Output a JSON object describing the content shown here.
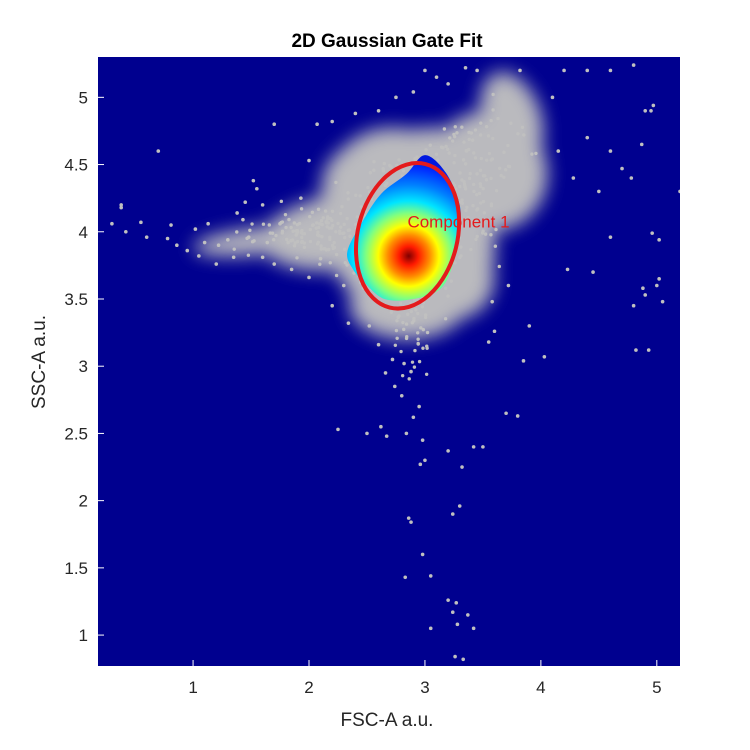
{
  "chart_data": {
    "type": "scatter",
    "title": "2D Gaussian Gate Fit",
    "xlabel": "FSC-A a.u.",
    "ylabel": "SSC-A a.u.",
    "xlim": [
      0.18,
      5.2
    ],
    "ylim": [
      0.77,
      5.3
    ],
    "xticks": [
      1,
      2,
      3,
      4,
      5
    ],
    "xtick_labels": [
      "1",
      "2",
      "3",
      "4",
      "5"
    ],
    "yticks": [
      1,
      1.5,
      2,
      2.5,
      3,
      3.5,
      4,
      4.5,
      5
    ],
    "ytick_labels": [
      "1",
      "1.5",
      "2",
      "2.5",
      "3",
      "3.5",
      "4",
      "4.5",
      "5"
    ],
    "grid": false,
    "colors": {
      "background": "#00008f",
      "outlier_points": "#c0c0c0",
      "gate": "#e41a1c",
      "annotation": "#e41a1c"
    },
    "colormap": "jet",
    "density_core": {
      "peak": [
        2.86,
        3.82
      ],
      "hull": [
        [
          2.33,
          3.85
        ],
        [
          2.45,
          4.06
        ],
        [
          2.62,
          4.28
        ],
        [
          2.84,
          4.43
        ],
        [
          3.0,
          4.57
        ],
        [
          3.18,
          4.44
        ],
        [
          3.3,
          4.2
        ],
        [
          3.3,
          3.99
        ],
        [
          3.25,
          3.78
        ],
        [
          3.14,
          3.58
        ],
        [
          2.9,
          3.5
        ],
        [
          2.65,
          3.5
        ],
        [
          2.48,
          3.62
        ],
        [
          2.38,
          3.72
        ]
      ]
    },
    "gate": {
      "center": [
        2.85,
        3.97
      ],
      "semi_axes": [
        0.43,
        0.55
      ],
      "rotation_deg": -14,
      "label": "Component 1",
      "label_anchor": [
        2.97,
        4.03
      ]
    },
    "outlier_points": [
      [
        0.3,
        4.06
      ],
      [
        0.38,
        4.2
      ],
      [
        0.38,
        4.18
      ],
      [
        0.42,
        4.0
      ],
      [
        0.55,
        4.07
      ],
      [
        0.6,
        3.96
      ],
      [
        0.7,
        4.6
      ],
      [
        0.78,
        3.95
      ],
      [
        0.81,
        4.05
      ],
      [
        0.86,
        3.9
      ],
      [
        0.95,
        3.86
      ],
      [
        1.02,
        4.02
      ],
      [
        1.1,
        3.92
      ],
      [
        1.13,
        4.06
      ],
      [
        1.22,
        3.9
      ],
      [
        1.3,
        3.94
      ],
      [
        1.35,
        3.81
      ],
      [
        1.43,
        4.09
      ],
      [
        1.48,
        3.96
      ],
      [
        1.6,
        4.2
      ],
      [
        1.64,
        3.92
      ],
      [
        1.7,
        4.8
      ],
      [
        1.75,
        4.06
      ],
      [
        1.82,
        3.92
      ],
      [
        1.9,
        4.0
      ],
      [
        1.93,
        4.25
      ],
      [
        2.0,
        4.53
      ],
      [
        2.07,
        4.8
      ],
      [
        2.0,
        3.66
      ],
      [
        2.1,
        3.8
      ],
      [
        2.3,
        3.6
      ],
      [
        2.52,
        3.3
      ],
      [
        2.6,
        3.16
      ],
      [
        2.72,
        3.05
      ],
      [
        2.82,
        3.02
      ],
      [
        2.66,
        2.95
      ],
      [
        2.74,
        2.85
      ],
      [
        2.88,
        2.96
      ],
      [
        2.8,
        2.78
      ],
      [
        2.95,
        2.7
      ],
      [
        2.9,
        2.62
      ],
      [
        2.25,
        2.53
      ],
      [
        2.62,
        2.55
      ],
      [
        2.5,
        2.5
      ],
      [
        2.67,
        2.48
      ],
      [
        2.84,
        2.5
      ],
      [
        2.98,
        2.45
      ],
      [
        3.2,
        2.37
      ],
      [
        3.5,
        2.4
      ],
      [
        3.42,
        2.4
      ],
      [
        3.0,
        2.3
      ],
      [
        2.96,
        2.27
      ],
      [
        3.32,
        2.25
      ],
      [
        2.86,
        1.87
      ],
      [
        2.88,
        1.84
      ],
      [
        3.3,
        1.96
      ],
      [
        3.24,
        1.9
      ],
      [
        2.83,
        1.43
      ],
      [
        3.05,
        1.44
      ],
      [
        3.2,
        1.26
      ],
      [
        3.27,
        1.24
      ],
      [
        3.24,
        1.17
      ],
      [
        3.37,
        1.15
      ],
      [
        3.28,
        1.08
      ],
      [
        3.42,
        1.05
      ],
      [
        3.05,
        1.05
      ],
      [
        3.26,
        0.84
      ],
      [
        3.33,
        0.82
      ],
      [
        3.7,
        2.65
      ],
      [
        3.8,
        2.63
      ],
      [
        3.85,
        3.04
      ],
      [
        4.03,
        3.07
      ],
      [
        3.6,
        3.26
      ],
      [
        3.9,
        3.3
      ],
      [
        4.23,
        3.72
      ],
      [
        4.45,
        3.7
      ],
      [
        3.82,
        5.2
      ],
      [
        3.45,
        5.2
      ],
      [
        4.1,
        5.0
      ],
      [
        4.2,
        5.2
      ],
      [
        4.4,
        5.2
      ],
      [
        4.6,
        5.2
      ],
      [
        4.8,
        5.24
      ],
      [
        4.9,
        4.9
      ],
      [
        4.95,
        4.9
      ],
      [
        4.97,
        4.94
      ],
      [
        4.4,
        4.7
      ],
      [
        4.6,
        4.6
      ],
      [
        4.87,
        4.65
      ],
      [
        4.28,
        4.4
      ],
      [
        4.78,
        4.4
      ],
      [
        4.5,
        4.3
      ],
      [
        4.15,
        4.6
      ],
      [
        4.6,
        3.96
      ],
      [
        4.96,
        3.99
      ],
      [
        5.02,
        3.94
      ],
      [
        4.7,
        4.47
      ],
      [
        4.9,
        3.53
      ],
      [
        4.8,
        3.45
      ],
      [
        5.0,
        3.6
      ],
      [
        4.88,
        3.58
      ],
      [
        5.05,
        3.48
      ],
      [
        4.82,
        3.12
      ],
      [
        4.93,
        3.12
      ],
      [
        5.02,
        3.65
      ],
      [
        5.2,
        4.3
      ],
      [
        3.0,
        5.2
      ],
      [
        3.2,
        5.1
      ],
      [
        3.1,
        5.15
      ],
      [
        3.35,
        5.22
      ],
      [
        2.2,
        4.82
      ],
      [
        2.4,
        4.88
      ],
      [
        2.6,
        4.9
      ],
      [
        2.75,
        5.0
      ],
      [
        2.9,
        5.04
      ],
      [
        1.52,
        4.38
      ],
      [
        1.45,
        4.22
      ],
      [
        1.38,
        4.14
      ],
      [
        2.98,
        1.6
      ],
      [
        2.34,
        3.32
      ],
      [
        3.58,
        3.48
      ],
      [
        3.72,
        3.6
      ],
      [
        3.55,
        3.18
      ],
      [
        1.85,
        3.72
      ],
      [
        1.7,
        3.76
      ],
      [
        1.6,
        3.81
      ],
      [
        1.2,
        3.76
      ],
      [
        1.05,
        3.82
      ],
      [
        1.55,
        4.32
      ],
      [
        2.2,
        3.45
      ]
    ]
  }
}
